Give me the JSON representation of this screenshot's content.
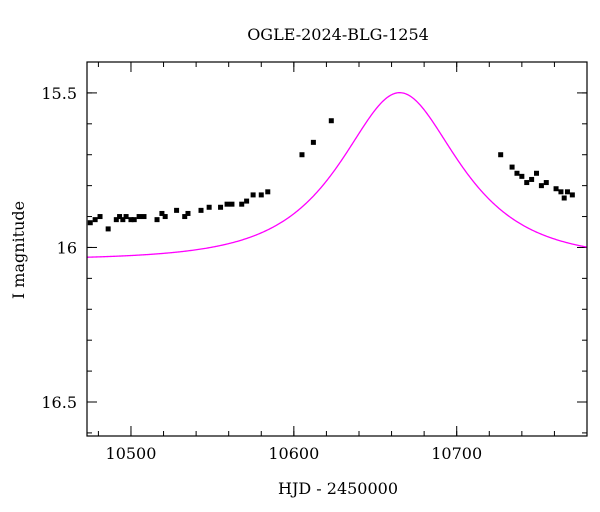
{
  "chart_data": {
    "type": "scatter",
    "title": "OGLE-2024-BLG-1254",
    "xlabel": "HJD - 2450000",
    "ylabel": "I magnitude",
    "xlim": [
      10473,
      10780
    ],
    "ylim": [
      16.61,
      15.4
    ],
    "y_inverted": true,
    "xticks": [
      {
        "value": 10500,
        "label": "10500"
      },
      {
        "value": 10600,
        "label": "10600"
      },
      {
        "value": 10700,
        "label": "10700"
      }
    ],
    "yticks": [
      {
        "value": 15.5,
        "label": "15.5"
      },
      {
        "value": 16,
        "label": "16"
      },
      {
        "value": 16.5,
        "label": "16.5"
      }
    ],
    "x_minor_step": 20,
    "y_minor_step": 0.1,
    "grid": false,
    "model_color": "#ff00ff",
    "point_color": "#000000",
    "model": {
      "name": "",
      "type": "microlensing",
      "t0": 10665,
      "tE": 52,
      "u0": 0.72,
      "baseline_mag": 16.04
    },
    "series": [
      {
        "name": "",
        "x": [
          10475,
          10478,
          10481,
          10486,
          10491,
          10493,
          10495,
          10497,
          10500,
          10502,
          10505,
          10508,
          10516,
          10519,
          10521,
          10528,
          10533,
          10535,
          10543,
          10548,
          10555,
          10559,
          10562,
          10568,
          10571,
          10575,
          10580,
          10584,
          10605,
          10612,
          10623,
          10727,
          10734,
          10737,
          10740,
          10743,
          10746,
          10749,
          10752,
          10755,
          10761,
          10764,
          10766,
          10768,
          10771
        ],
        "y": [
          15.92,
          15.91,
          15.9,
          15.94,
          15.91,
          15.9,
          15.91,
          15.9,
          15.91,
          15.91,
          15.9,
          15.9,
          15.91,
          15.89,
          15.9,
          15.88,
          15.9,
          15.89,
          15.88,
          15.87,
          15.87,
          15.86,
          15.86,
          15.86,
          15.85,
          15.83,
          15.83,
          15.82,
          15.7,
          15.66,
          15.59,
          15.7,
          15.74,
          15.76,
          15.77,
          15.79,
          15.78,
          15.76,
          15.8,
          15.79,
          15.81,
          15.82,
          15.84,
          15.82,
          15.83
        ]
      }
    ]
  }
}
